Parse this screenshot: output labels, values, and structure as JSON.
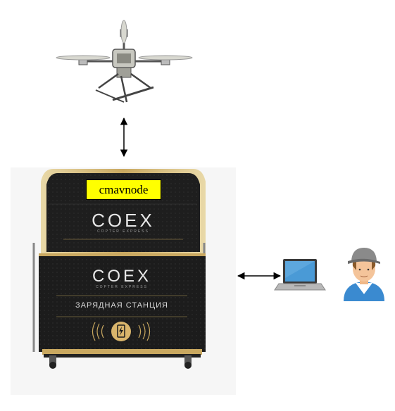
{
  "diagram": {
    "node_label": "cmavnode",
    "station": {
      "brand": "COEX",
      "brand_sub": "COPTER EXPRESS",
      "caption": "ЗАРЯДНАЯ СТАНЦИЯ"
    },
    "icons": [
      "drone-icon",
      "arrow-up-down-icon",
      "arrow-left-right-icon",
      "laptop-icon",
      "user-icon",
      "charging-station-icon"
    ],
    "colors": {
      "label_bg": "#ffff00",
      "station_body": "#1e1e1e",
      "station_gold": "#c9a860",
      "laptop_screen": "#4a9ad6",
      "user_shirt": "#3a8ad0",
      "user_cap": "#8a8a8a"
    }
  }
}
